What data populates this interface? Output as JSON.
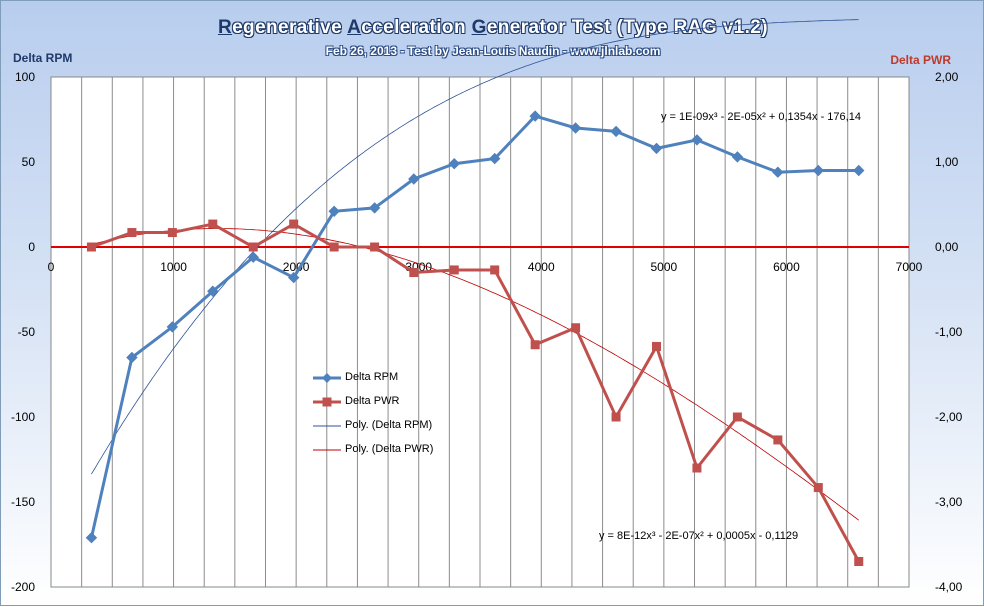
{
  "title": "Regenerative Acceleration Generator Test (Type RAG v1.2)",
  "title_parts": [
    {
      "initial": "R",
      "rest": "egenerative "
    },
    {
      "initial": "A",
      "rest": "cceleration "
    },
    {
      "initial": "G",
      "rest": "enerator Test (Type RAG v1.2)"
    }
  ],
  "subtitle": "Feb 26, 2013 - Test by Jean-Louis Naudin - www.jlnlab.com",
  "chart_data": {
    "type": "line",
    "title": "Regenerative Acceleration Generator Test (Type RAG v1.2)",
    "subtitle": "Feb 26, 2013 - Test by Jean-Louis Naudin - www.jlnlab.com",
    "ylabel": "Delta RPM",
    "y2label": "Delta PWR",
    "xlim": [
      0,
      7000
    ],
    "ylim": [
      -200,
      100
    ],
    "y2lim": [
      -4,
      2
    ],
    "x_ticks": [
      "0",
      "1000",
      "2000",
      "3000",
      "4000",
      "5000",
      "6000",
      "7000"
    ],
    "y_ticks": [
      "100",
      "50",
      "0",
      "-50",
      "-100",
      "-150",
      "-200"
    ],
    "y2_ticks": [
      "2,00",
      "1,00",
      "0,00",
      "-1,00",
      "-2,00",
      "-3,00",
      "-4,00"
    ],
    "grid": "vertical",
    "legend_position": "center-left",
    "series": [
      {
        "name": "Delta RPM",
        "axis": "left",
        "color": "#4f81bd",
        "marker": "diamond",
        "points": [
          [
            330,
            -171
          ],
          [
            660,
            -65
          ],
          [
            990,
            -47
          ],
          [
            1320,
            -26
          ],
          [
            1650,
            -6
          ],
          [
            1980,
            -18
          ],
          [
            2310,
            21
          ],
          [
            2640,
            23
          ],
          [
            2960,
            40
          ],
          [
            3290,
            49
          ],
          [
            3620,
            52
          ],
          [
            3950,
            77
          ],
          [
            4280,
            70
          ],
          [
            4610,
            68
          ],
          [
            4940,
            58
          ],
          [
            5270,
            63
          ],
          [
            5600,
            53
          ],
          [
            5930,
            44
          ],
          [
            6260,
            45
          ],
          [
            6590,
            45
          ]
        ]
      },
      {
        "name": "Delta PWR",
        "axis": "right",
        "color": "#c0504d",
        "marker": "square",
        "points": [
          [
            330,
            0
          ],
          [
            660,
            0.17
          ],
          [
            990,
            0.17
          ],
          [
            1320,
            0.27
          ],
          [
            1650,
            0
          ],
          [
            1980,
            0.27
          ],
          [
            2310,
            0
          ],
          [
            2640,
            0
          ],
          [
            2960,
            -0.3
          ],
          [
            3290,
            -0.27
          ],
          [
            3620,
            -0.27
          ],
          [
            3950,
            -1.15
          ],
          [
            4280,
            -0.95
          ],
          [
            4610,
            -2
          ],
          [
            4940,
            -1.17
          ],
          [
            5270,
            -2.6
          ],
          [
            5600,
            -2
          ],
          [
            5930,
            -2.27
          ],
          [
            6260,
            -2.83
          ],
          [
            6590,
            -3.7
          ]
        ]
      },
      {
        "name": "Poly. (Delta RPM)",
        "axis": "left",
        "color": "#2f5597",
        "type": "trendline"
      },
      {
        "name": "Poly. (Delta PWR)",
        "axis": "right",
        "color": "#c00000",
        "type": "trendline"
      }
    ],
    "annotations": [
      "y = 1E-09x³ - 2E-05x² + 0,1354x - 176,14",
      "y = 8E-12x³ - 2E-07x² + 0,0005x - 0,1129"
    ]
  },
  "colors": {
    "rpm": "#4f81bd",
    "pwr": "#c0504d",
    "rpm_trend": "#2f5597",
    "pwr_trend": "#c00000",
    "zero_line": "#e00000",
    "title_dark": "#1f3a6a"
  }
}
